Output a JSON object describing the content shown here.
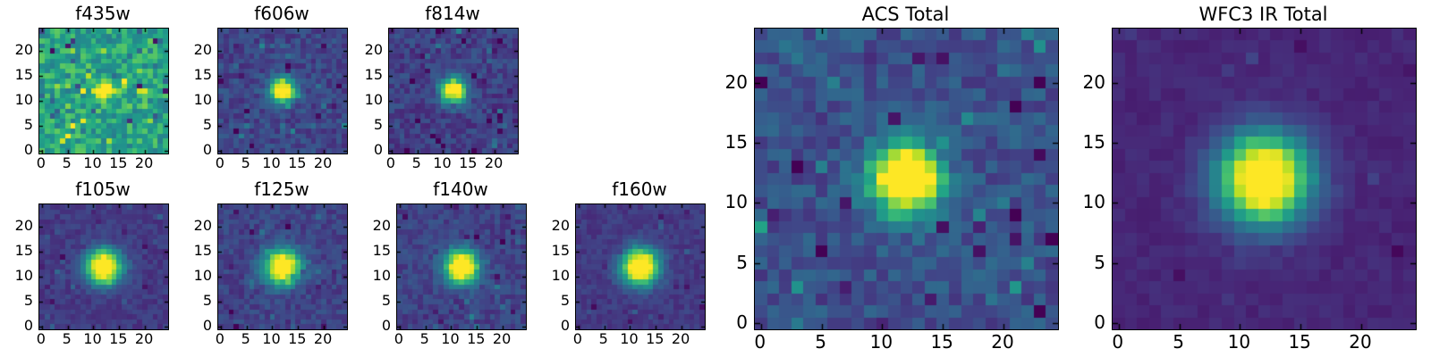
{
  "figure": {
    "background": "#ffffff",
    "text_color": "#000000",
    "colormap_name": "viridis",
    "colormap_stops": [
      "#440154",
      "#482475",
      "#414487",
      "#355f8d",
      "#2a788e",
      "#21918c",
      "#22a884",
      "#44bf70",
      "#7ad151",
      "#bddf26",
      "#fde725"
    ]
  },
  "chart_data": {
    "type": "heatmap",
    "description": "Grid of astronomical image cutouts: seven HST filter stamps (two rows) plus two larger stacked-total images, each a 25x25 pixel map with a point source at the center rendered in the viridis colormap.",
    "grid_size": {
      "nx": 25,
      "ny": 25
    },
    "axes": {
      "xticks": [
        0,
        5,
        10,
        15,
        20
      ],
      "yticks": [
        0,
        5,
        10,
        15,
        20
      ],
      "xlim": [
        -0.5,
        24.5
      ],
      "ylim": [
        -0.5,
        24.5
      ],
      "grid": false
    },
    "point_source": {
      "x": 12,
      "y": 12
    },
    "panels": [
      {
        "id": "f435w",
        "title": "f435w",
        "size": "small",
        "row": 0,
        "col": 0,
        "background_level": 0.58,
        "noise_level": 0.17,
        "outlier_fraction": 0.1,
        "outlier_strength": 0.3,
        "source_peak": 0.5,
        "source_sigma": 1.5,
        "seed": 20250
      },
      {
        "id": "f606w",
        "title": "f606w",
        "size": "small",
        "row": 0,
        "col": 1,
        "background_level": 0.21,
        "noise_level": 0.09,
        "outlier_fraction": 0.08,
        "outlier_strength": 0.16,
        "source_peak": 1.0,
        "source_sigma": 1.7,
        "seed": 777
      },
      {
        "id": "f814w",
        "title": "f814w",
        "size": "small",
        "row": 0,
        "col": 2,
        "background_level": 0.19,
        "noise_level": 0.09,
        "outlier_fraction": 0.08,
        "outlier_strength": 0.15,
        "source_peak": 1.05,
        "source_sigma": 1.75,
        "seed": 4242
      },
      {
        "id": "f105w",
        "title": "f105w",
        "size": "small",
        "row": 1,
        "col": 0,
        "background_level": 0.17,
        "noise_level": 0.055,
        "outlier_fraction": 0.05,
        "outlier_strength": 0.08,
        "source_peak": 1.1,
        "source_sigma": 2.4,
        "seed": 9001
      },
      {
        "id": "f125w",
        "title": "f125w",
        "size": "small",
        "row": 1,
        "col": 1,
        "background_level": 0.2,
        "noise_level": 0.075,
        "outlier_fraction": 0.06,
        "outlier_strength": 0.12,
        "source_peak": 1.05,
        "source_sigma": 2.4,
        "seed": 1337
      },
      {
        "id": "f140w",
        "title": "f140w",
        "size": "small",
        "row": 1,
        "col": 2,
        "background_level": 0.2,
        "noise_level": 0.075,
        "outlier_fraction": 0.06,
        "outlier_strength": 0.12,
        "source_peak": 1.1,
        "source_sigma": 2.3,
        "seed": 555
      },
      {
        "id": "f160w",
        "title": "f160w",
        "size": "small",
        "row": 1,
        "col": 3,
        "background_level": 0.17,
        "noise_level": 0.05,
        "outlier_fraction": 0.05,
        "outlier_strength": 0.08,
        "source_peak": 1.15,
        "source_sigma": 2.45,
        "seed": 31415
      },
      {
        "id": "acs_total",
        "title": "ACS Total",
        "size": "large",
        "row": 0,
        "col": 0,
        "background_level": 0.25,
        "noise_level": 0.1,
        "outlier_fraction": 0.08,
        "outlier_strength": 0.18,
        "source_peak": 1.25,
        "source_sigma": 1.9,
        "seed": 2718
      },
      {
        "id": "wfc3_ir_total",
        "title": "WFC3 IR Total",
        "size": "large",
        "row": 0,
        "col": 1,
        "background_level": 0.11,
        "noise_level": 0.03,
        "outlier_fraction": 0.03,
        "outlier_strength": 0.05,
        "source_peak": 1.2,
        "source_sigma": 2.55,
        "seed": 161803
      }
    ]
  }
}
